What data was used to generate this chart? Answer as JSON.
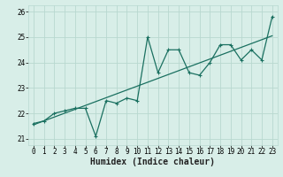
{
  "title": "",
  "xlabel": "Humidex (Indice chaleur)",
  "ylabel": "",
  "background_color": "#d8eee8",
  "grid_color": "#b8d8d0",
  "line_color": "#1a7060",
  "xlim": [
    -0.5,
    23.5
  ],
  "ylim": [
    20.75,
    26.25
  ],
  "xticks": [
    0,
    1,
    2,
    3,
    4,
    5,
    6,
    7,
    8,
    9,
    10,
    11,
    12,
    13,
    14,
    15,
    16,
    17,
    18,
    19,
    20,
    21,
    22,
    23
  ],
  "yticks": [
    21,
    22,
    23,
    24,
    25,
    26
  ],
  "zigzag_x": [
    0,
    1,
    2,
    3,
    4,
    5,
    6,
    7,
    8,
    9,
    10,
    11,
    12,
    13,
    14,
    15,
    16,
    17,
    18,
    19,
    20,
    21,
    22,
    23
  ],
  "zigzag_y": [
    21.6,
    21.7,
    22.0,
    22.1,
    22.2,
    22.2,
    21.1,
    22.5,
    22.4,
    22.6,
    22.5,
    25.0,
    23.6,
    24.5,
    24.5,
    23.6,
    23.5,
    24.0,
    24.7,
    24.7,
    24.1,
    24.5,
    24.1,
    25.8
  ],
  "trend_x": [
    0,
    23
  ],
  "trend_y": [
    21.55,
    25.05
  ],
  "font_size_xlabel": 7,
  "tick_fontsize": 5.5,
  "marker_size": 2.5,
  "line_width": 0.9
}
